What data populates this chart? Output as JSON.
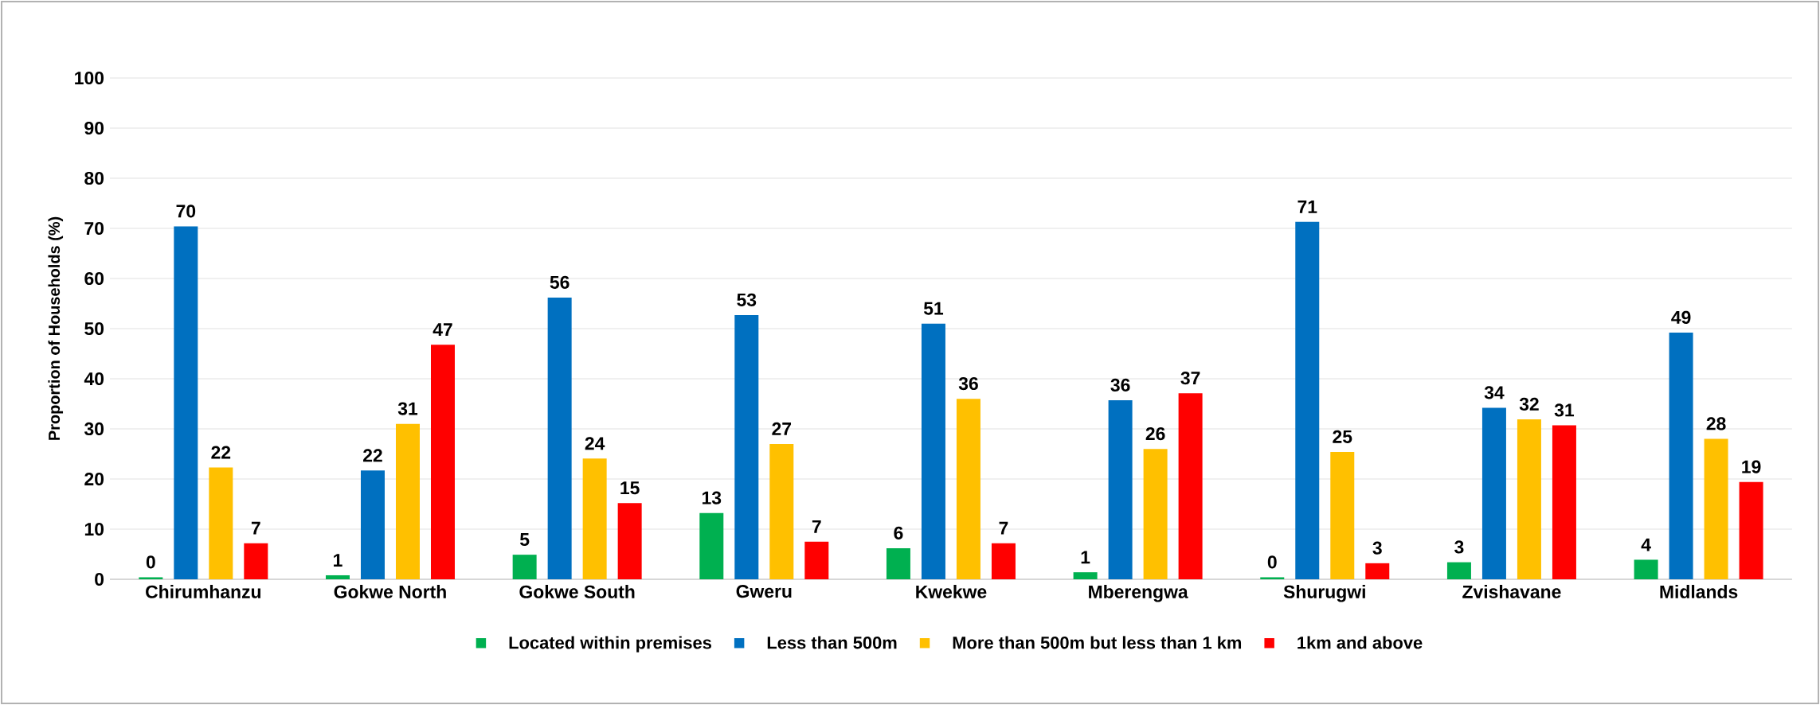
{
  "chart_data": {
    "type": "bar",
    "ylabel": "Proportion of Households (%)",
    "categories": [
      "Chirumhanzu",
      "Gokwe North",
      "Gokwe South",
      "Gweru",
      "Kwekwe",
      "Mberengwa",
      "Shurugwi",
      "Zvishavane",
      "Midlands"
    ],
    "series": [
      {
        "name": "Located within premises",
        "color": "#00b050",
        "values": [
          0.4,
          0.8,
          4.9,
          13.2,
          6.2,
          1.4,
          0.4,
          3.4,
          3.9
        ],
        "value_labels": [
          "0",
          "1",
          "5",
          "13",
          "6",
          "1",
          "0",
          "3",
          "4"
        ]
      },
      {
        "name": "Less than 500m",
        "color": "#0070c0",
        "values": [
          70.4,
          21.7,
          56.2,
          52.7,
          51.0,
          35.7,
          71.3,
          34.2,
          49.2
        ],
        "value_labels": [
          "70",
          "22",
          "56",
          "53",
          "51",
          "36",
          "71",
          "34",
          "49"
        ]
      },
      {
        "name": "More than 500m but less than 1 km",
        "color": "#ffc000",
        "values": [
          22.3,
          31.0,
          24.1,
          27.0,
          36.0,
          26.0,
          25.4,
          31.9,
          28.0
        ],
        "value_labels": [
          "22",
          "31",
          "24",
          "27",
          "36",
          "26",
          "25",
          "32",
          "28"
        ]
      },
      {
        "name": "1km and above",
        "color": "#ff0000",
        "values": [
          7.2,
          46.8,
          15.2,
          7.5,
          7.2,
          37.1,
          3.2,
          30.7,
          19.4
        ],
        "value_labels": [
          "7",
          "47",
          "15",
          "7",
          "7",
          "37",
          "3",
          "31",
          "19"
        ]
      }
    ],
    "ylim": [
      0,
      100
    ],
    "yticks": [
      0,
      10,
      20,
      30,
      40,
      50,
      60,
      70,
      80,
      90,
      100
    ],
    "grid": "y",
    "legend": "bottom"
  }
}
